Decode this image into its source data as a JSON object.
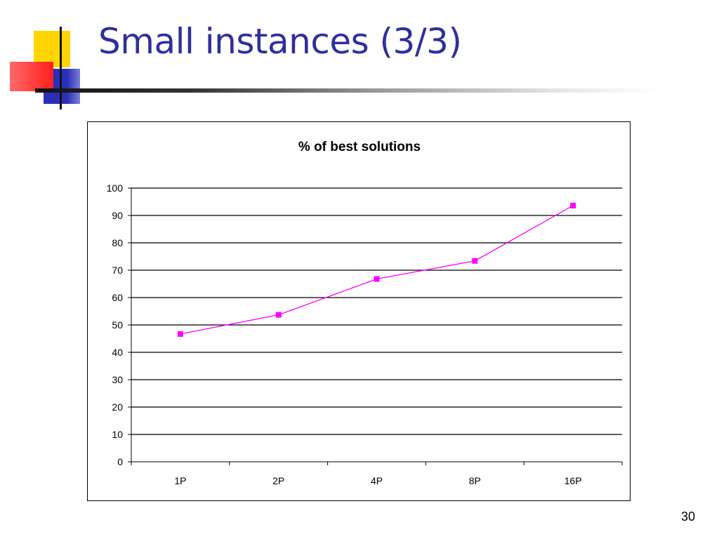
{
  "slide": {
    "title": "Small instances (3/3)",
    "page_number": "30",
    "title_color": "#2f2f9c"
  },
  "chart_data": {
    "type": "line",
    "title": "% of best solutions",
    "categories": [
      "1P",
      "2P",
      "4P",
      "8P",
      "16P"
    ],
    "series": [
      {
        "values": [
          46.7,
          53.7,
          66.8,
          73.4,
          93.6
        ],
        "color": "#ff00ff",
        "marker": "square"
      }
    ],
    "yticks": [
      "0",
      "10",
      "20",
      "30",
      "40",
      "50",
      "60",
      "70",
      "80",
      "90",
      "100"
    ],
    "ylim": [
      0,
      100
    ],
    "xlabel": "",
    "ylabel": "",
    "grid": true,
    "legend": "none"
  }
}
